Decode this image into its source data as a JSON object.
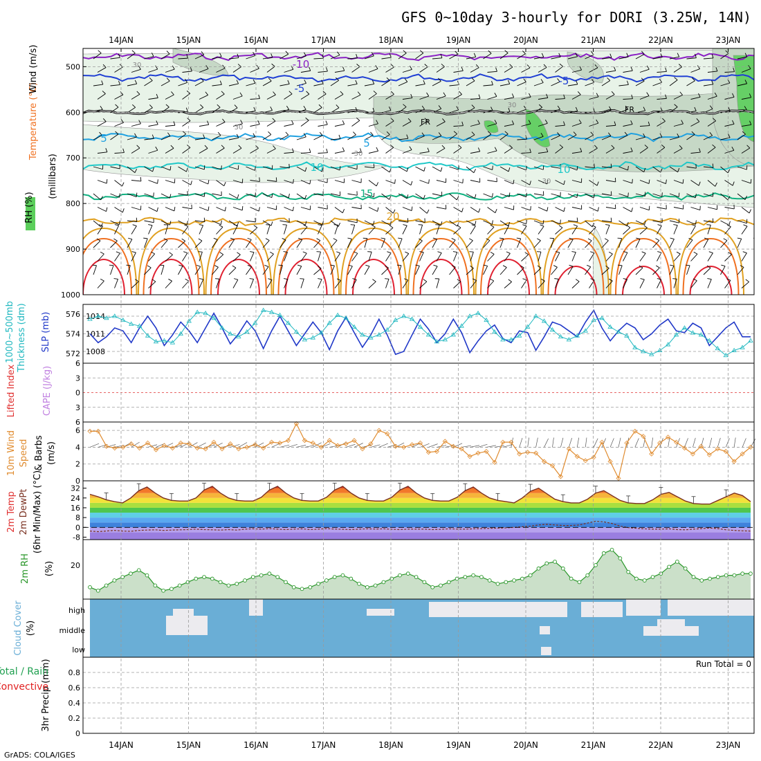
{
  "header": {
    "title": "GFS 0~10day 3-hourly for DORI (3.25W, 14N)"
  },
  "footer": {
    "credit": "GrADS: COLA/IGES"
  },
  "colors": {
    "wind_temp_m10": "#8a1fc4",
    "temp_m5": "#1f3fd4",
    "freezing": "#000000",
    "temp_5": "#1fa0e0",
    "temp_10": "#20c8c8",
    "temp_15": "#10b080",
    "temp_20": "#e0a020",
    "temp_warm": "#f07020",
    "temp_hot": "#e02030",
    "rh_light": "#e6f2e6",
    "rh_mid": "#c3d6c3",
    "rh_dark": "#5ccf5c",
    "slp": "#2038c8",
    "thickness": "#20b8c0",
    "lifted_index": "#e03030",
    "wind10m": "#e08c30",
    "rh2m": "#289628",
    "cloud": "#6aaed6",
    "cloud_clear": "#ecebef",
    "precip_green": "#20a050",
    "precip_red": "#e02020"
  },
  "chart_data": [
    {
      "id": "upper_air",
      "type": "contour",
      "title": "GFS 0~10day 3-hourly for DORI (3.25W, 14N)",
      "ylabel_parts": [
        "RH (%)",
        "Temperature (°C)",
        "Wind (m/s)"
      ],
      "ylabel_units": "(millibars)",
      "y_ticks": [
        500,
        600,
        700,
        800,
        900,
        1000
      ],
      "ylim": [
        460,
        1000
      ],
      "date_labels": [
        "14JAN",
        "15JAN",
        "16JAN",
        "17JAN",
        "18JAN",
        "19JAN",
        "20JAN",
        "21JAN",
        "22JAN",
        "23JAN"
      ],
      "date_axis_start": "2013-01-13T12:00",
      "date_axis_end": "2013-01-23T09:00",
      "contour_labels": [
        "-10",
        "-5",
        "FR",
        "-5",
        "-5",
        "5",
        "-5",
        "10",
        "10",
        "15",
        "20",
        "30",
        "30",
        "30",
        "30",
        "FR"
      ],
      "isotherms": [
        {
          "label": "-10",
          "mean_pressure": 478
        },
        {
          "label": "-5",
          "mean_pressure": 525
        },
        {
          "label": "FR",
          "mean_pressure": 600
        },
        {
          "label": "5",
          "mean_pressure": 655
        },
        {
          "label": "10",
          "mean_pressure": 718
        },
        {
          "label": "15",
          "mean_pressure": 785
        },
        {
          "label": "20",
          "mean_pressure": 840
        }
      ]
    },
    {
      "id": "slp_thickness",
      "type": "line",
      "ylabel_left": "1000~500mb Thickness (dm)",
      "ylabel_right": "SLP (mb)",
      "left_ticks": [
        572,
        574,
        576
      ],
      "right_ticks": [
        1008,
        1011,
        1014
      ],
      "slp_range": [
        1006,
        1016
      ],
      "thickness_range": [
        571,
        577
      ],
      "series": [
        {
          "name": "SLP (mb)",
          "values": [
            1011,
            1009.5,
            1010.5,
            1012,
            1011.5,
            1009.5,
            1012,
            1014,
            1012,
            1009,
            1010.8,
            1013,
            1011.5,
            1009.5,
            1012,
            1014.5,
            1012,
            1009.3,
            1011,
            1013.2,
            1011.5,
            1008.5,
            1011.5,
            1014,
            1011.5,
            1009,
            1011,
            1013,
            1011.2,
            1008.3,
            1011.5,
            1013.8,
            1011.2,
            1008.7,
            1010.8,
            1013.5,
            1010.8,
            1007.5,
            1008,
            1010.8,
            1013.5,
            1011.8,
            1009.5,
            1011,
            1013.5,
            1011.2,
            1007.8,
            1009.8,
            1011.5,
            1012.5,
            1010.2,
            1009.5,
            1011.5,
            1011.2,
            1008.2,
            1010.5,
            1013,
            1012.5,
            1011.5,
            1010.5,
            1013,
            1015,
            1012,
            1009.8,
            1011.5,
            1012.8,
            1012,
            1010,
            1011,
            1012.5,
            1013.5,
            1011.5,
            1011.2,
            1012.8,
            1012,
            1009,
            1010.5,
            1012,
            1013,
            1010.5,
            1010.5
          ]
        },
        {
          "name": "Thickness (dm)",
          "values": [
            575.5,
            575.8,
            575.6,
            575.8,
            575.4,
            575,
            574.8,
            573.8,
            573.2,
            573.3,
            573.1,
            574,
            575.3,
            576.2,
            576.1,
            575.6,
            574.6,
            574,
            573.7,
            574.2,
            575.1,
            576.4,
            576.2,
            575.9,
            575.1,
            574.2,
            573.4,
            573.6,
            574.1,
            575.1,
            575.9,
            575.6,
            574.7,
            573.9,
            573.6,
            573.9,
            574.4,
            575.4,
            575.8,
            575.5,
            574.7,
            573.9,
            573.2,
            573.4,
            573.9,
            574.8,
            575.8,
            576.1,
            575.4,
            574.2,
            573.4,
            573.4,
            573.8,
            574.7,
            575.8,
            575.3,
            574.4,
            573.7,
            573.4,
            573.8,
            574.3,
            575.4,
            575.6,
            574.7,
            574.2,
            573.8,
            572.6,
            572.2,
            571.9,
            572.3,
            572.9,
            573.9,
            574.6,
            574.1,
            573.9,
            573.3,
            572.5,
            571.8,
            572.3,
            572.6,
            573.3
          ]
        }
      ]
    },
    {
      "id": "li_cape",
      "type": "line",
      "ylabel_left": "Lifted Index",
      "ylabel_right": "CAPE (J/kg)",
      "y_ticks": [
        6,
        3,
        0,
        -3,
        -6
      ],
      "series": [
        {
          "name": "Lifted Index",
          "values": []
        },
        {
          "name": "CAPE (J/kg)",
          "values": []
        }
      ]
    },
    {
      "id": "wind10m",
      "type": "line",
      "ylabel": "10m Wind Speed & Barbs (m/s)",
      "y_ticks": [
        0,
        2,
        4,
        6
      ],
      "ylim": [
        0,
        7
      ],
      "series": [
        {
          "name": "Speed",
          "values": [
            5.9,
            5.9,
            4.1,
            3.9,
            4,
            4.4,
            3.9,
            4.5,
            3.7,
            4.2,
            3.9,
            4.5,
            4.4,
            3.9,
            3.8,
            4.6,
            3.8,
            4.4,
            3.8,
            4,
            4.3,
            3.9,
            4.6,
            4.5,
            4.8,
            6.8,
            4.8,
            4.5,
            4,
            4.8,
            4.2,
            4.4,
            4.8,
            3.8,
            4.4,
            6,
            5.6,
            4.1,
            4,
            4.3,
            4.5,
            3.4,
            3.5,
            4.7,
            4.1,
            3.8,
            2.9,
            3.3,
            3.5,
            2.2,
            4.6,
            4.6,
            3.2,
            3.4,
            3.3,
            2.3,
            1.8,
            0.5,
            3.8,
            2.9,
            2.4,
            2.8,
            4.6,
            2.3,
            0.3,
            4.5,
            5.9,
            5.3,
            3.2,
            4.5,
            5.2,
            4.6,
            3.9,
            3.2,
            4.1,
            3.1,
            3.8,
            3.5,
            2.3,
            3.2,
            4
          ]
        }
      ]
    },
    {
      "id": "temp2m",
      "type": "area",
      "ylabel": "2m Temp 2m DewPt (6hr Min/Max) (°C)",
      "y_ticks": [
        32,
        24,
        16,
        8,
        0,
        -8
      ],
      "y_tick_labels": [
        "32",
        "24",
        "16",
        "8",
        "0",
        "-8"
      ],
      "ylim": [
        -10,
        38
      ],
      "series": [
        {
          "name": "2m Temp",
          "values": [
            27,
            25,
            22.5,
            21,
            20,
            24,
            30,
            33,
            28,
            24,
            22,
            21.5,
            21.5,
            24,
            30.5,
            33.5,
            28,
            24,
            22,
            21.5,
            21.5,
            24.5,
            30.5,
            33.5,
            28,
            24,
            22,
            21.5,
            21.5,
            24.5,
            30.5,
            33.5,
            28,
            24,
            22,
            21.5,
            21.5,
            24.5,
            30.5,
            33.5,
            28,
            24,
            22,
            21.5,
            21.5,
            24.5,
            30,
            33,
            28,
            24,
            22,
            21,
            20,
            24,
            29.5,
            32,
            27.5,
            23,
            21,
            20,
            20,
            23,
            28,
            30,
            26,
            22,
            20,
            19.5,
            19.5,
            22.5,
            27,
            28.5,
            25,
            21.5,
            19.5,
            19,
            19,
            22,
            25,
            28,
            26,
            21
          ]
        },
        {
          "name": "2m DewPt",
          "values": [
            -3,
            -3.5,
            -3,
            -2.5,
            -3,
            -3.2,
            -2.5,
            -2.2,
            -2,
            -2.5,
            -2.2,
            -2,
            -1.8,
            -1.5,
            -1.8,
            -2,
            -2.2,
            -1.8,
            -2.2,
            -1.5,
            -1.2,
            -1.5,
            -1,
            -1.5,
            -1.8,
            -1.5,
            -1.2,
            -1.8,
            -1.5,
            -1,
            -1.4,
            -1.6,
            -1.8,
            -1.5,
            -1.2,
            -1.4,
            -1.2,
            -1.6,
            -1.8,
            -1.5,
            -1.5,
            -1.5,
            -1.8,
            -1.6,
            -1.2,
            -1.4,
            -1.5,
            -1.2,
            -1,
            -0.8,
            -0.6,
            -0.4,
            0,
            0.5,
            1,
            2,
            2.5,
            2,
            1.5,
            1.5,
            2,
            3.5,
            5,
            4.5,
            3.2,
            1,
            -0.2,
            -0.8,
            -1.2,
            -1.5,
            -1.5,
            -1.2,
            -1.8,
            -2,
            -1.5,
            -1,
            -0.5,
            -1,
            -2,
            -2.5,
            -2.8,
            -3
          ]
        }
      ]
    },
    {
      "id": "rh2m",
      "type": "area",
      "ylabel": "2m RH (%)",
      "y_ticks": [
        20
      ],
      "ylim": [
        0,
        35
      ],
      "series": [
        {
          "name": "2m RH",
          "values": [
            7,
            5,
            8,
            11,
            13,
            15,
            17,
            14,
            8,
            5,
            6,
            8,
            10,
            12,
            13,
            12,
            10,
            8,
            9,
            11,
            13,
            14,
            15,
            13,
            10,
            7,
            6,
            7,
            9,
            11,
            13,
            14,
            12,
            9,
            7,
            8,
            10,
            12,
            14,
            15,
            13,
            10,
            7,
            8,
            10,
            12,
            13,
            14,
            13,
            11,
            9,
            10,
            11,
            12,
            14,
            18,
            21,
            22,
            18,
            12,
            10,
            14,
            20,
            27,
            29,
            24,
            16,
            12,
            11,
            13,
            15,
            19,
            22,
            18,
            13,
            11,
            12,
            13,
            14,
            14,
            15,
            15
          ]
        }
      ]
    },
    {
      "id": "cloud",
      "type": "heatmap",
      "ylabel": "Cloud Cover (%)",
      "rows": [
        "high",
        "middle",
        "low"
      ],
      "note": "solid blue = no cloud; light bars = cloud fraction present"
    },
    {
      "id": "precip",
      "type": "bar",
      "ylabel": "3hr Precip (mm)",
      "ylabel_left": "Total / Rain",
      "ylabel_conv": "Convective",
      "run_total": "Run Total = 0",
      "y_ticks": [
        0,
        0.2,
        0.4,
        0.6,
        0.8
      ],
      "ylim": [
        0,
        1
      ],
      "values": []
    }
  ]
}
